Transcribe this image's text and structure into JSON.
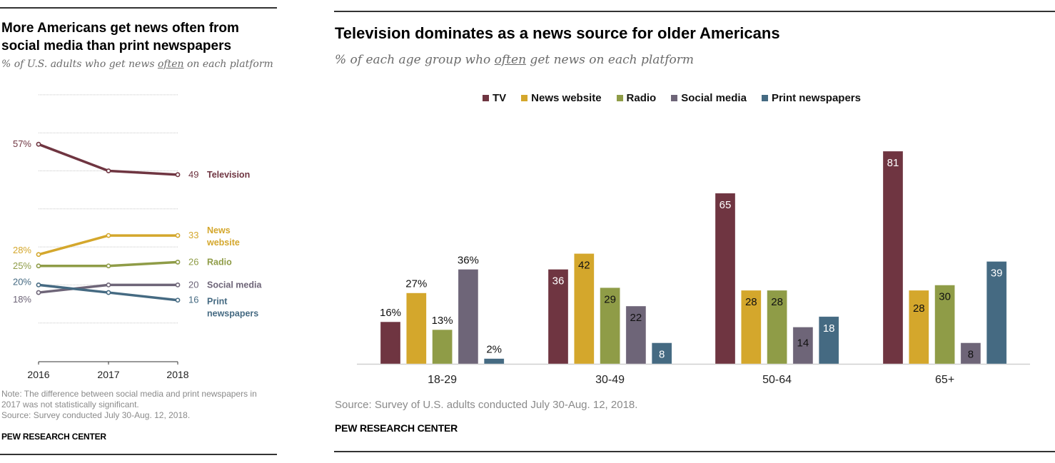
{
  "left_panel": {
    "title_line1": "More Americans get news often from",
    "title_line2": "social media than print newspapers",
    "subtitle_pre": "% of U.S. adults who get news ",
    "subtitle_em": "often",
    "subtitle_post": " on each platform",
    "note_line1": "Note: The difference between social media and print newspapers in",
    "note_line2": "2017 was not statistically significant.",
    "source": "Source: Survey conducted July 30-Aug. 12, 2018.",
    "brand": "PEW RESEARCH CENTER"
  },
  "right_panel": {
    "title": "Television dominates as a news source for older Americans",
    "subtitle_pre": "% of each age group who ",
    "subtitle_em": "often",
    "subtitle_post": " get news on each platform",
    "source": "Source: Survey of U.S. adults conducted July 30-Aug. 12, 2018.",
    "brand": "PEW RESEARCH CENTER"
  },
  "chart_data": [
    {
      "type": "line",
      "title": "More Americans get news often from social media than print newspapers",
      "subtitle": "% of U.S. adults who get news often on each platform",
      "x": [
        "2016",
        "2017",
        "2018"
      ],
      "ylim": [
        0,
        70
      ],
      "grid": true,
      "series": [
        {
          "name": "Television",
          "label_lines": [
            "Television"
          ],
          "values": [
            57,
            50,
            49
          ],
          "start_label": "57%",
          "end_label": "49",
          "color": "#6f3541"
        },
        {
          "name": "News website",
          "label_lines": [
            "News",
            "website"
          ],
          "values": [
            28,
            33,
            33
          ],
          "start_label": "28%",
          "end_label": "33",
          "color": "#d4a72c"
        },
        {
          "name": "Radio",
          "label_lines": [
            "Radio"
          ],
          "values": [
            25,
            25,
            26
          ],
          "start_label": "25%",
          "end_label": "26",
          "color": "#8f9c47"
        },
        {
          "name": "Social media",
          "label_lines": [
            "Social media"
          ],
          "values": [
            18,
            20,
            20
          ],
          "start_label": "18%",
          "end_label": "20",
          "color": "#6e6578"
        },
        {
          "name": "Print newspapers",
          "label_lines": [
            "Print",
            "newspapers"
          ],
          "values": [
            20,
            18,
            16
          ],
          "start_label": "20%",
          "end_label": "16",
          "color": "#456a82"
        }
      ]
    },
    {
      "type": "bar",
      "title": "Television dominates as a news source for older Americans",
      "subtitle": "% of each age group who often get news on each platform",
      "categories": [
        "18-29",
        "30-49",
        "50-64",
        "65+"
      ],
      "ylim": [
        0,
        85
      ],
      "legend_position": "top",
      "series": [
        {
          "name": "TV",
          "color": "#6f3541",
          "values": [
            16,
            36,
            65,
            81
          ]
        },
        {
          "name": "News website",
          "color": "#d4a72c",
          "values": [
            27,
            42,
            28,
            28
          ]
        },
        {
          "name": "Radio",
          "color": "#8f9c47",
          "values": [
            13,
            29,
            28,
            30
          ]
        },
        {
          "name": "Social media",
          "color": "#6e6578",
          "values": [
            36,
            22,
            14,
            8
          ]
        },
        {
          "name": "Print newspapers",
          "color": "#456a82",
          "values": [
            2,
            8,
            18,
            39
          ]
        }
      ],
      "label_style": {
        "first_category_outside_with_percent": true,
        "inside_text_colors": {
          "TV": "#ffffff",
          "News website": "#111111",
          "Radio": "#111111",
          "Social media": "#111111",
          "Print newspapers": "#ffffff"
        }
      }
    }
  ]
}
